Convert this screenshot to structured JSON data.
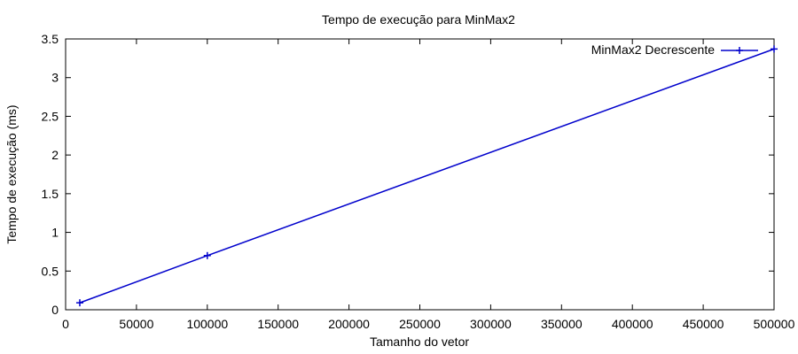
{
  "chart_data": {
    "type": "line",
    "title": "Tempo de execução para MinMax2",
    "xlabel": "Tamanho do vetor",
    "ylabel": "Tempo de execução (ms)",
    "xlim": [
      0,
      500000
    ],
    "ylim": [
      0,
      3.5
    ],
    "x_ticks": [
      0,
      50000,
      100000,
      150000,
      200000,
      250000,
      300000,
      350000,
      400000,
      450000,
      500000
    ],
    "y_ticks": [
      0,
      0.5,
      1,
      1.5,
      2,
      2.5,
      3,
      3.5
    ],
    "x_tick_labels": [
      "0",
      "50000",
      "100000",
      "150000",
      "200000",
      "250000",
      "300000",
      "350000",
      "400000",
      "450000",
      "500000"
    ],
    "y_tick_labels": [
      "0",
      "0.5",
      "1",
      "1.5",
      "2",
      "2.5",
      "3",
      "3.5"
    ],
    "grid": false,
    "legend_position": "top-right",
    "series": [
      {
        "name": "MinMax2 Decrescente",
        "color": "#0000cc",
        "marker": "plus",
        "x": [
          10000,
          100000,
          500000
        ],
        "y": [
          0.09,
          0.7,
          3.37
        ]
      }
    ]
  }
}
